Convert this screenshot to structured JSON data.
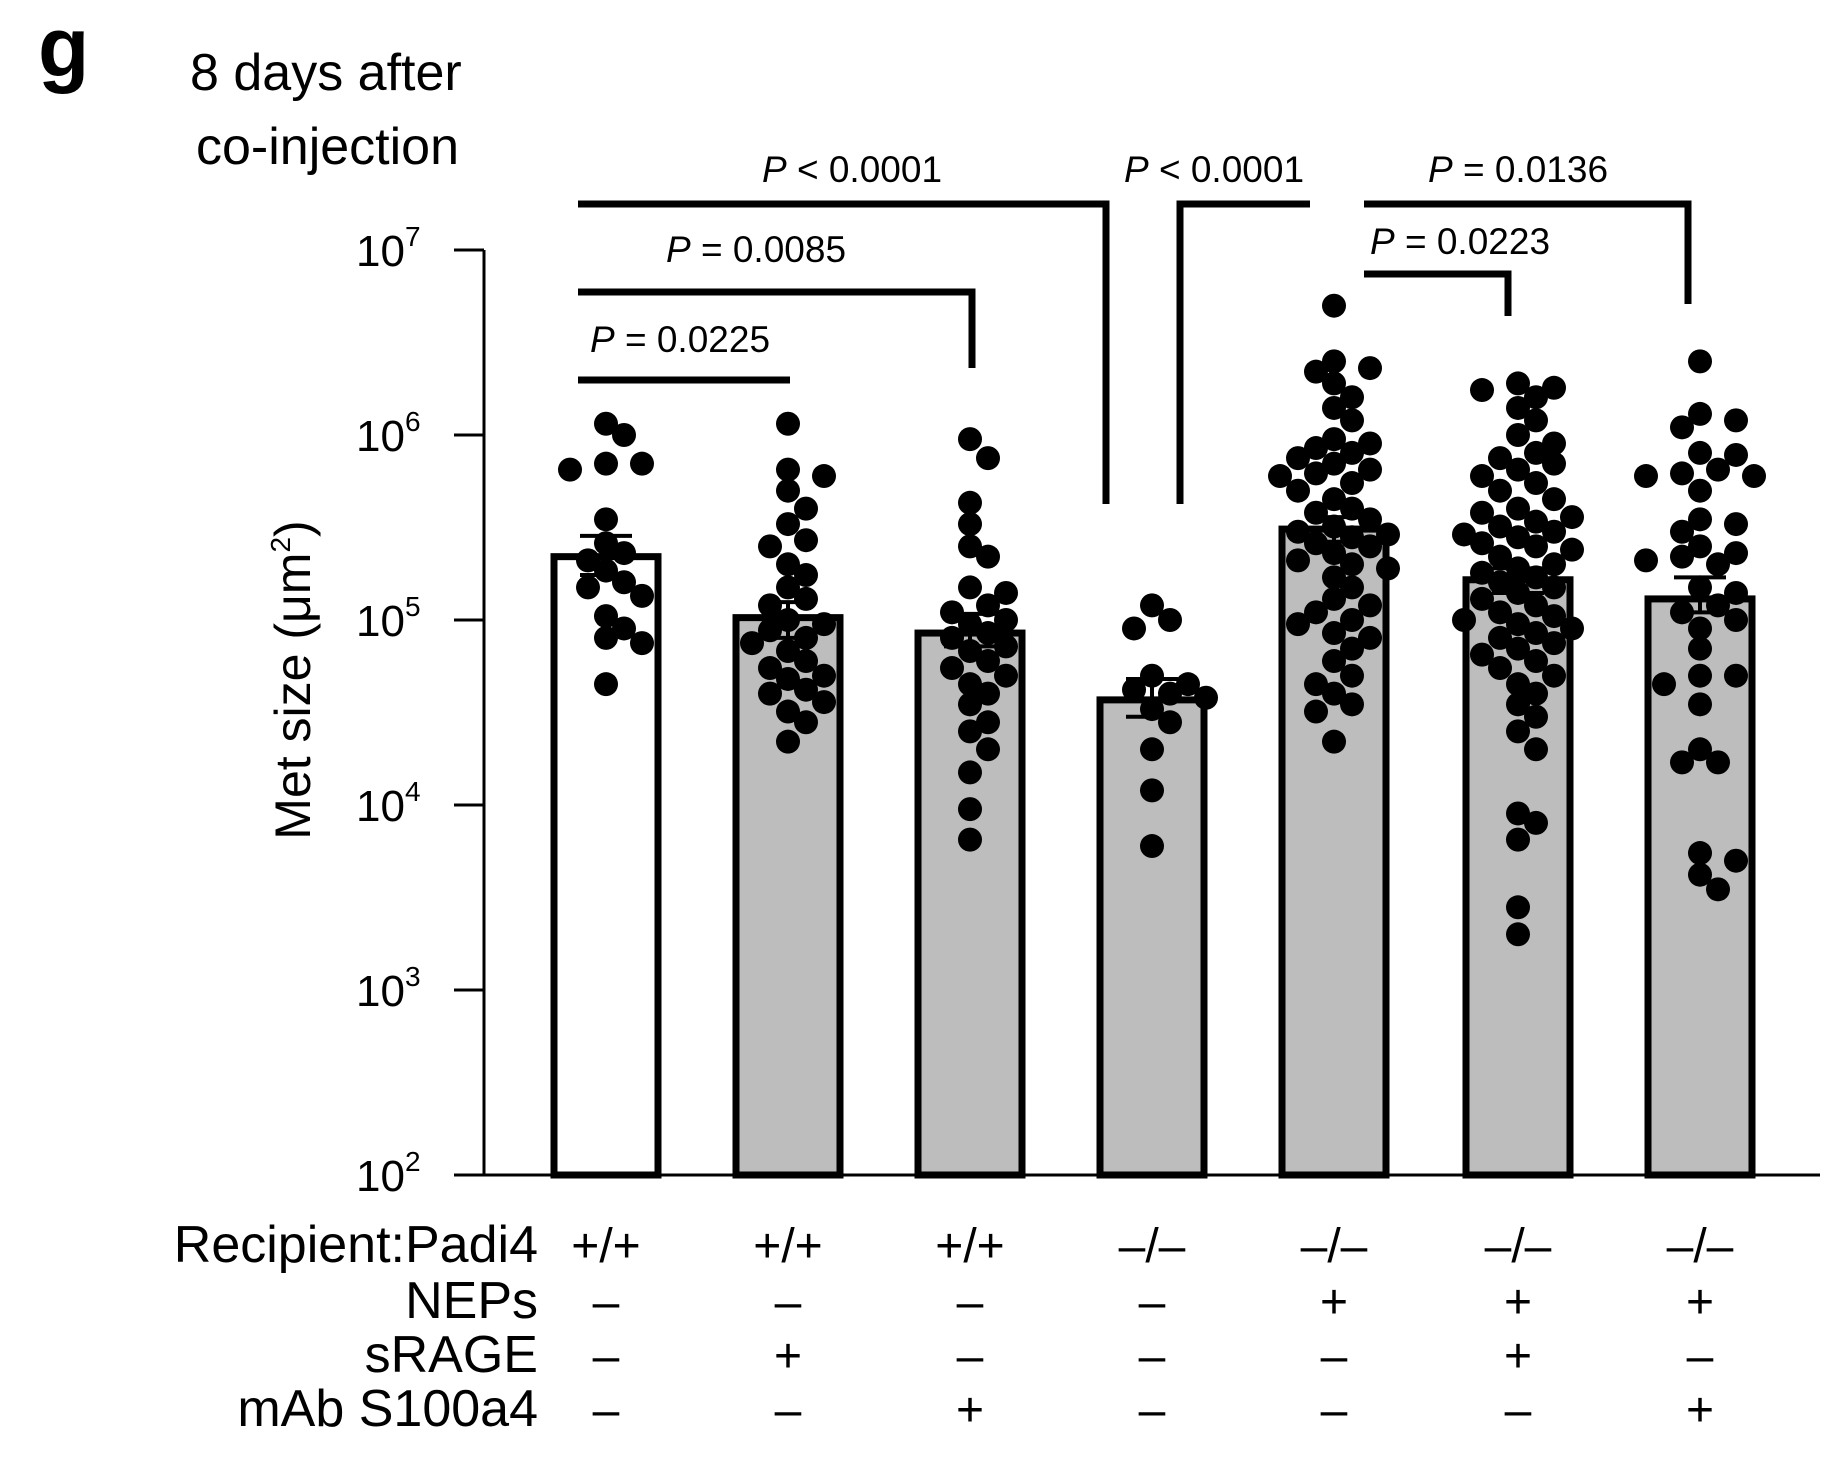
{
  "panel_label": "g",
  "chart_data": {
    "type": "bar",
    "title": "8 days after co-injection",
    "title_lines": [
      "8 days after",
      "co-injection"
    ],
    "ylabel": "Met size (μm²)",
    "ylabel_main": "Met size (μm",
    "ylabel_sup": "2",
    "ylabel_close": ")",
    "yscale": "log",
    "ylim": [
      100,
      10000000
    ],
    "yticks": [
      {
        "value": 100,
        "base": "10",
        "exp": "2"
      },
      {
        "value": 1000,
        "base": "10",
        "exp": "3"
      },
      {
        "value": 10000,
        "base": "10",
        "exp": "4"
      },
      {
        "value": 100000,
        "base": "10",
        "exp": "5"
      },
      {
        "value": 1000000,
        "base": "10",
        "exp": "6"
      },
      {
        "value": 10000000,
        "base": "10",
        "exp": "7"
      }
    ],
    "colors": {
      "white_bar": "#ffffff",
      "gray_bar": "#bdbdbd",
      "point": "#000000",
      "axis": "#000000"
    },
    "groups": [
      {
        "recipient": "+/+",
        "neps": "–",
        "srage": "–",
        "mab": "–",
        "fill": "white",
        "mean": 220000,
        "sem_low": 175000,
        "sem_high": 285000,
        "points": [
          1150000,
          1000000,
          700000,
          700000,
          650000,
          350000,
          260000,
          230000,
          210000,
          185000,
          160000,
          150000,
          135000,
          105000,
          90000,
          80000,
          75000,
          45000
        ]
      },
      {
        "recipient": "+/+",
        "neps": "–",
        "srage": "+",
        "mab": "–",
        "fill": "gray",
        "mean": 103000,
        "sem_low": 80000,
        "sem_high": 125000,
        "points": [
          1150000,
          650000,
          600000,
          500000,
          400000,
          330000,
          270000,
          250000,
          200000,
          175000,
          150000,
          130000,
          120000,
          100000,
          95000,
          88000,
          80000,
          75000,
          68000,
          60000,
          55000,
          50000,
          48000,
          42000,
          40000,
          36000,
          32000,
          28000,
          22000
        ]
      },
      {
        "recipient": "+/+",
        "neps": "–",
        "srage": "–",
        "mab": "+",
        "fill": "gray",
        "mean": 85000,
        "sem_low": 72000,
        "sem_high": 108000,
        "points": [
          950000,
          750000,
          430000,
          330000,
          250000,
          220000,
          150000,
          140000,
          120000,
          110000,
          100000,
          95000,
          85000,
          80000,
          72000,
          68000,
          60000,
          55000,
          50000,
          45000,
          40000,
          35000,
          28000,
          25000,
          20000,
          15000,
          9500,
          6500
        ]
      },
      {
        "recipient": "–/–",
        "neps": "–",
        "srage": "–",
        "mab": "–",
        "fill": "gray",
        "mean": 37000,
        "sem_low": 30000,
        "sem_high": 48000,
        "points": [
          120000,
          100000,
          90000,
          50000,
          45000,
          42000,
          40000,
          38000,
          33000,
          28000,
          20000,
          12000,
          6000
        ]
      },
      {
        "recipient": "–/–",
        "neps": "+",
        "srage": "–",
        "mab": "–",
        "fill": "gray",
        "mean": 310000,
        "sem_low": 265000,
        "sem_high": 360000,
        "points": [
          5000000,
          2500000,
          2300000,
          2200000,
          1900000,
          1600000,
          1400000,
          1200000,
          950000,
          900000,
          850000,
          800000,
          750000,
          700000,
          650000,
          620000,
          600000,
          550000,
          500000,
          450000,
          400000,
          380000,
          350000,
          320000,
          300000,
          290000,
          280000,
          260000,
          250000,
          230000,
          210000,
          200000,
          190000,
          170000,
          150000,
          130000,
          120000,
          110000,
          100000,
          95000,
          85000,
          80000,
          70000,
          60000,
          50000,
          45000,
          40000,
          35000,
          32000,
          22000
        ]
      },
      {
        "recipient": "–/–",
        "neps": "+",
        "srage": "+",
        "mab": "–",
        "fill": "gray",
        "mean": 165000,
        "sem_low": 140000,
        "sem_high": 190000,
        "points": [
          1900000,
          1800000,
          1750000,
          1600000,
          1400000,
          1200000,
          1000000,
          900000,
          800000,
          750000,
          700000,
          650000,
          600000,
          550000,
          500000,
          450000,
          400000,
          380000,
          360000,
          340000,
          320000,
          300000,
          290000,
          280000,
          260000,
          250000,
          240000,
          220000,
          200000,
          190000,
          180000,
          170000,
          160000,
          150000,
          140000,
          130000,
          120000,
          110000,
          105000,
          100000,
          95000,
          90000,
          85000,
          80000,
          75000,
          70000,
          65000,
          60000,
          55000,
          50000,
          45000,
          40000,
          35000,
          30000,
          25000,
          20000,
          9000,
          8000,
          6500,
          2800,
          2000
        ]
      },
      {
        "recipient": "–/–",
        "neps": "+",
        "srage": "–",
        "mab": "+",
        "fill": "gray",
        "mean": 130000,
        "sem_low": 110000,
        "sem_high": 170000,
        "points": [
          2500000,
          1300000,
          1200000,
          1100000,
          800000,
          780000,
          650000,
          620000,
          600000,
          600000,
          500000,
          350000,
          330000,
          300000,
          250000,
          230000,
          220000,
          210000,
          200000,
          150000,
          140000,
          120000,
          110000,
          100000,
          90000,
          70000,
          50000,
          50000,
          45000,
          35000,
          20000,
          17000,
          17000,
          5500,
          5000,
          4200,
          3500
        ]
      }
    ],
    "brackets": [
      {
        "label_italic": "P",
        "label_rest": " = 0.0225",
        "from": 0,
        "to": 1
      },
      {
        "label_italic": "P",
        "label_rest": " = 0.0085",
        "from": 0,
        "to": 2
      },
      {
        "label_italic": "P",
        "label_rest": " < 0.0001",
        "from": 0,
        "to": 3
      },
      {
        "label_italic": "P",
        "label_rest": " < 0.0001",
        "from": 3,
        "to": 4
      },
      {
        "label_italic": "P",
        "label_rest": " = 0.0223",
        "from": 4,
        "to": 5
      },
      {
        "label_italic": "P",
        "label_rest": " = 0.0136",
        "from": 4,
        "to": 6
      }
    ],
    "row_labels": {
      "recipient": "Recipient:Padi4",
      "neps": "NEPs",
      "srage": "sRAGE",
      "mab": "mAb S100a4"
    }
  }
}
